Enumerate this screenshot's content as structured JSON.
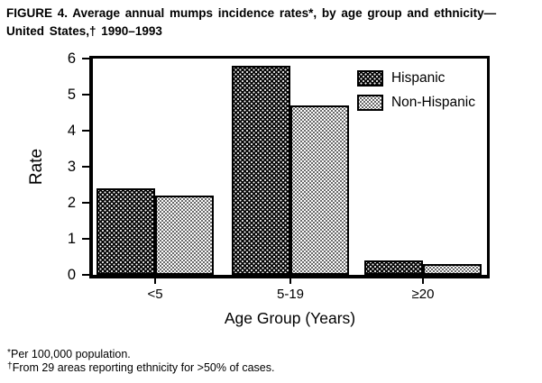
{
  "figure": {
    "title_line1": "FIGURE 4. Average annual mumps incidence rates*, by age group and ethnicity—",
    "title_line2": "United States,† 1990–1993",
    "footnotes": [
      {
        "mark": "*",
        "text": "Per 100,000 population."
      },
      {
        "mark": "†",
        "text": "From 29 areas reporting ethnicity for >50% of cases."
      }
    ]
  },
  "chart_data": {
    "type": "bar",
    "categories": [
      "<5",
      "5-19",
      "≥20"
    ],
    "series": [
      {
        "name": "Hispanic",
        "values": [
          2.4,
          5.8,
          0.4
        ],
        "fill": "black-with-white-dots"
      },
      {
        "name": "Non-Hispanic",
        "values": [
          2.2,
          4.7,
          0.3
        ],
        "fill": "white-with-black-dots"
      }
    ],
    "xlabel": "Age Group (Years)",
    "ylabel": "Rate",
    "ylim": [
      0,
      6
    ],
    "yticks": [
      0,
      1,
      2,
      3,
      4,
      5,
      6
    ],
    "grid": false,
    "legend_position": "top-right-inside",
    "colors": {
      "foreground": "#000000",
      "background": "#ffffff",
      "hispanic_fill": "#060606",
      "non_hispanic_fill": "#fbfbfb"
    }
  }
}
